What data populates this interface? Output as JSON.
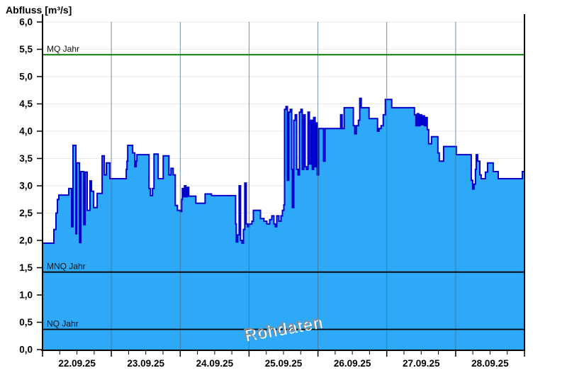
{
  "chart_data": {
    "type": "area",
    "title": "Abfluss [m³/s]",
    "ylabel": "Abfluss [m³/s]",
    "watermark": "Rohdaten",
    "grid": true,
    "ylim": [
      0,
      6
    ],
    "y_tick_step": 0.5,
    "y_tick_labels": [
      "0,0",
      "0,5",
      "1,0",
      "1,5",
      "2,0",
      "2,5",
      "3,0",
      "3,5",
      "4,0",
      "4,5",
      "5,0",
      "5,5",
      "6,0"
    ],
    "x_day_labels": [
      "22.09.25",
      "23.09.25",
      "24.09.25",
      "25.09.25",
      "26.09.25",
      "27.09.25",
      "28.09.25"
    ],
    "x_minor_ticks_per_day": 4,
    "x_range_days": 7,
    "reference_lines": [
      {
        "label": "MQ Jahr",
        "value": 5.4,
        "color": "#007A00"
      },
      {
        "label": "MNQ Jahr",
        "value": 1.42,
        "color": "#000000"
      },
      {
        "label": "NQ Jahr",
        "value": 0.37,
        "color": "#000000"
      }
    ],
    "colors": {
      "area_fill": "#2DA9F8",
      "area_line": "#0000CC",
      "h_grid": "#E9E9E9",
      "day_grid": "#4A6A88",
      "axis": "#000000"
    },
    "series": [
      {
        "name": "Abfluss Rohdaten",
        "unit": "m³/s",
        "x_unit": "days since 22.09.25 00:00",
        "step": "after",
        "points": [
          [
            0.0,
            1.95
          ],
          [
            0.165,
            2.2
          ],
          [
            0.196,
            2.5
          ],
          [
            0.216,
            2.75
          ],
          [
            0.237,
            2.83
          ],
          [
            0.381,
            2.95
          ],
          [
            0.423,
            2.25
          ],
          [
            0.443,
            3.74
          ],
          [
            0.485,
            2.12
          ],
          [
            0.495,
            3.42
          ],
          [
            0.536,
            1.96
          ],
          [
            0.557,
            3.26
          ],
          [
            0.598,
            2.29
          ],
          [
            0.619,
            3.25
          ],
          [
            0.649,
            2.55
          ],
          [
            0.69,
            3.09
          ],
          [
            0.711,
            2.9
          ],
          [
            0.742,
            2.6
          ],
          [
            0.794,
            2.86
          ],
          [
            0.866,
            3.55
          ],
          [
            0.897,
            3.2
          ],
          [
            0.928,
            3.42
          ],
          [
            0.979,
            3.13
          ],
          [
            1.216,
            3.3
          ],
          [
            1.227,
            3.45
          ],
          [
            1.237,
            3.74
          ],
          [
            1.309,
            3.6
          ],
          [
            1.34,
            3.35
          ],
          [
            1.361,
            3.45
          ],
          [
            1.371,
            3.57
          ],
          [
            1.546,
            2.95
          ],
          [
            1.567,
            2.82
          ],
          [
            1.598,
            2.95
          ],
          [
            1.619,
            3.58
          ],
          [
            1.68,
            3.13
          ],
          [
            1.753,
            3.55
          ],
          [
            1.835,
            3.2
          ],
          [
            1.866,
            3.32
          ],
          [
            1.897,
            3.2
          ],
          [
            1.928,
            2.64
          ],
          [
            1.959,
            2.55
          ],
          [
            2.0,
            2.53
          ],
          [
            2.021,
            2.75
          ],
          [
            2.031,
            2.95
          ],
          [
            2.041,
            2.8
          ],
          [
            2.062,
            3.0
          ],
          [
            2.082,
            2.8
          ],
          [
            2.103,
            2.97
          ],
          [
            2.124,
            2.81
          ],
          [
            2.227,
            2.68
          ],
          [
            2.361,
            2.85
          ],
          [
            2.454,
            2.82
          ],
          [
            2.804,
            2.3
          ],
          [
            2.814,
            1.97
          ],
          [
            2.835,
            2.1
          ],
          [
            2.856,
            3.0
          ],
          [
            2.876,
            2.0
          ],
          [
            2.897,
            1.95
          ],
          [
            2.918,
            2.2
          ],
          [
            2.938,
            3.05
          ],
          [
            2.959,
            2.3
          ],
          [
            2.979,
            2.25
          ],
          [
            3.0,
            2.3
          ],
          [
            3.041,
            2.35
          ],
          [
            3.062,
            2.55
          ],
          [
            3.165,
            2.4
          ],
          [
            3.216,
            2.35
          ],
          [
            3.258,
            2.3
          ],
          [
            3.299,
            2.38
          ],
          [
            3.33,
            2.45
          ],
          [
            3.361,
            2.3
          ],
          [
            3.381,
            2.25
          ],
          [
            3.402,
            2.45
          ],
          [
            3.433,
            2.35
          ],
          [
            3.464,
            2.45
          ],
          [
            3.485,
            2.55
          ],
          [
            3.505,
            2.65
          ],
          [
            3.515,
            4.4
          ],
          [
            3.536,
            4.45
          ],
          [
            3.557,
            3.1
          ],
          [
            3.577,
            4.35
          ],
          [
            3.598,
            4.4
          ],
          [
            3.619,
            3.3
          ],
          [
            3.629,
            2.6
          ],
          [
            3.649,
            4.2
          ],
          [
            3.67,
            4.3
          ],
          [
            3.691,
            3.3
          ],
          [
            3.711,
            3.2
          ],
          [
            3.732,
            4.35
          ],
          [
            3.753,
            4.4
          ],
          [
            3.773,
            3.3
          ],
          [
            3.794,
            4.3
          ],
          [
            3.814,
            3.35
          ],
          [
            3.835,
            3.3
          ],
          [
            3.856,
            4.35
          ],
          [
            3.876,
            3.4
          ],
          [
            3.897,
            4.2
          ],
          [
            3.918,
            3.3
          ],
          [
            3.938,
            4.25
          ],
          [
            3.959,
            3.35
          ],
          [
            3.969,
            4.15
          ],
          [
            3.99,
            3.2
          ],
          [
            4.01,
            4.05
          ],
          [
            4.082,
            3.45
          ],
          [
            4.103,
            4.05
          ],
          [
            4.33,
            4.3
          ],
          [
            4.351,
            4.05
          ],
          [
            4.381,
            4.43
          ],
          [
            4.515,
            4.1
          ],
          [
            4.536,
            3.95
          ],
          [
            4.557,
            4.1
          ],
          [
            4.588,
            4.2
          ],
          [
            4.608,
            4.6
          ],
          [
            4.629,
            4.43
          ],
          [
            4.742,
            4.23
          ],
          [
            4.866,
            4.0
          ],
          [
            4.887,
            4.05
          ],
          [
            4.918,
            4.1
          ],
          [
            4.948,
            4.3
          ],
          [
            4.979,
            4.58
          ],
          [
            5.072,
            4.43
          ],
          [
            5.402,
            4.3
          ],
          [
            5.423,
            4.1
          ],
          [
            5.443,
            4.32
          ],
          [
            5.464,
            4.1
          ],
          [
            5.485,
            4.3
          ],
          [
            5.505,
            4.12
          ],
          [
            5.526,
            4.28
          ],
          [
            5.546,
            4.1
          ],
          [
            5.567,
            4.25
          ],
          [
            5.588,
            4.03
          ],
          [
            5.608,
            3.77
          ],
          [
            5.649,
            3.9
          ],
          [
            5.742,
            3.6
          ],
          [
            5.763,
            3.45
          ],
          [
            5.825,
            3.72
          ],
          [
            6.01,
            3.57
          ],
          [
            6.227,
            3.1
          ],
          [
            6.247,
            2.94
          ],
          [
            6.268,
            3.03
          ],
          [
            6.288,
            3.3
          ],
          [
            6.299,
            3.57
          ],
          [
            6.32,
            3.45
          ],
          [
            6.351,
            3.2
          ],
          [
            6.371,
            3.13
          ],
          [
            6.433,
            3.25
          ],
          [
            6.464,
            3.42
          ],
          [
            6.546,
            3.26
          ],
          [
            6.619,
            3.13
          ],
          [
            6.969,
            3.26
          ],
          [
            7.0,
            3.26
          ]
        ]
      }
    ]
  }
}
